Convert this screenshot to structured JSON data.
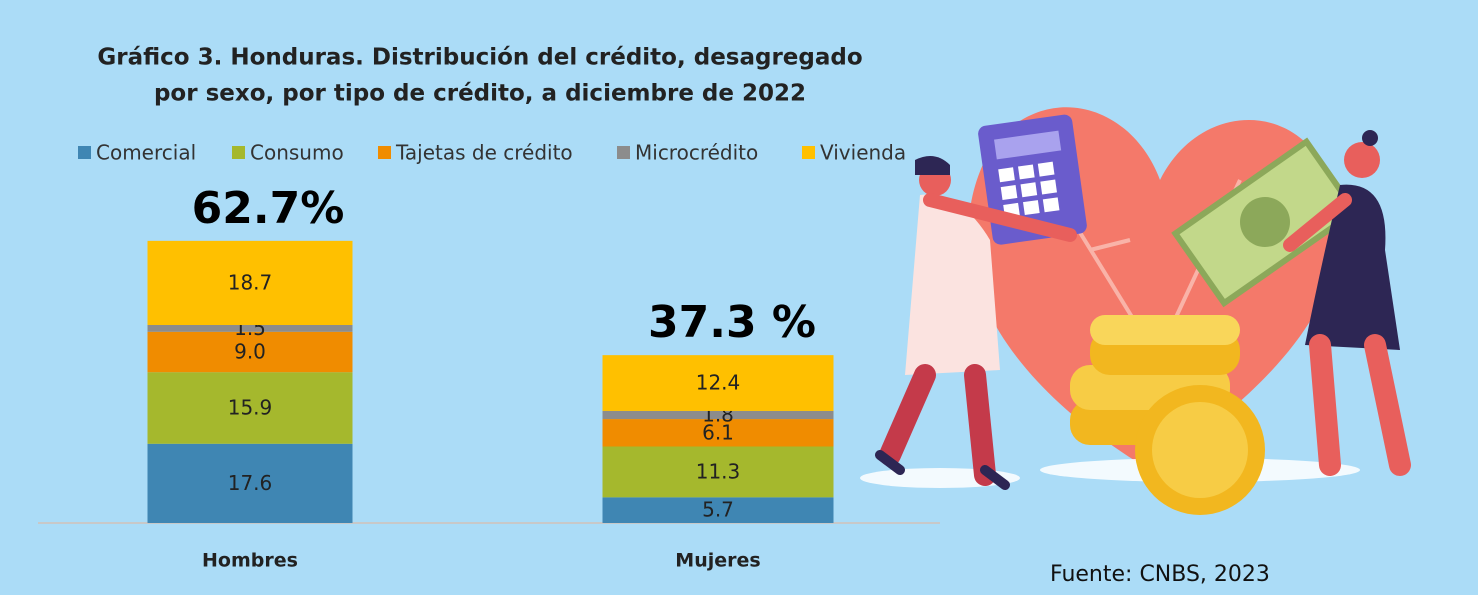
{
  "chart_data": {
    "type": "stacked-bar",
    "title": [
      "Gráfico 3. Honduras. Distribución del crédito, desagregado",
      "por sexo, por tipo de crédito, a diciembre de 2022"
    ],
    "categories": [
      "Hombres",
      "Mujeres"
    ],
    "series": [
      {
        "name": "Comercial",
        "color": "#3f86b3",
        "values": [
          17.6,
          5.7
        ]
      },
      {
        "name": "Consumo",
        "color": "#a5b82d",
        "values": [
          15.9,
          11.3
        ]
      },
      {
        "name": "Tajetas de crédito",
        "color": "#f08c00",
        "values": [
          9,
          6.1
        ],
        "value_labels": [
          "9.0",
          "6.1"
        ]
      },
      {
        "name": "Microcrédito",
        "color": "#8c8c8c",
        "values": [
          1.5,
          1.8
        ]
      },
      {
        "name": "Vivienda",
        "color": "#ffc000",
        "values": [
          18.7,
          12.4
        ]
      }
    ],
    "annotations": [
      "62.7%",
      "37.3 %"
    ],
    "ylim": [
      0,
      70
    ],
    "source": "Fuente: CNBS, 2023"
  }
}
